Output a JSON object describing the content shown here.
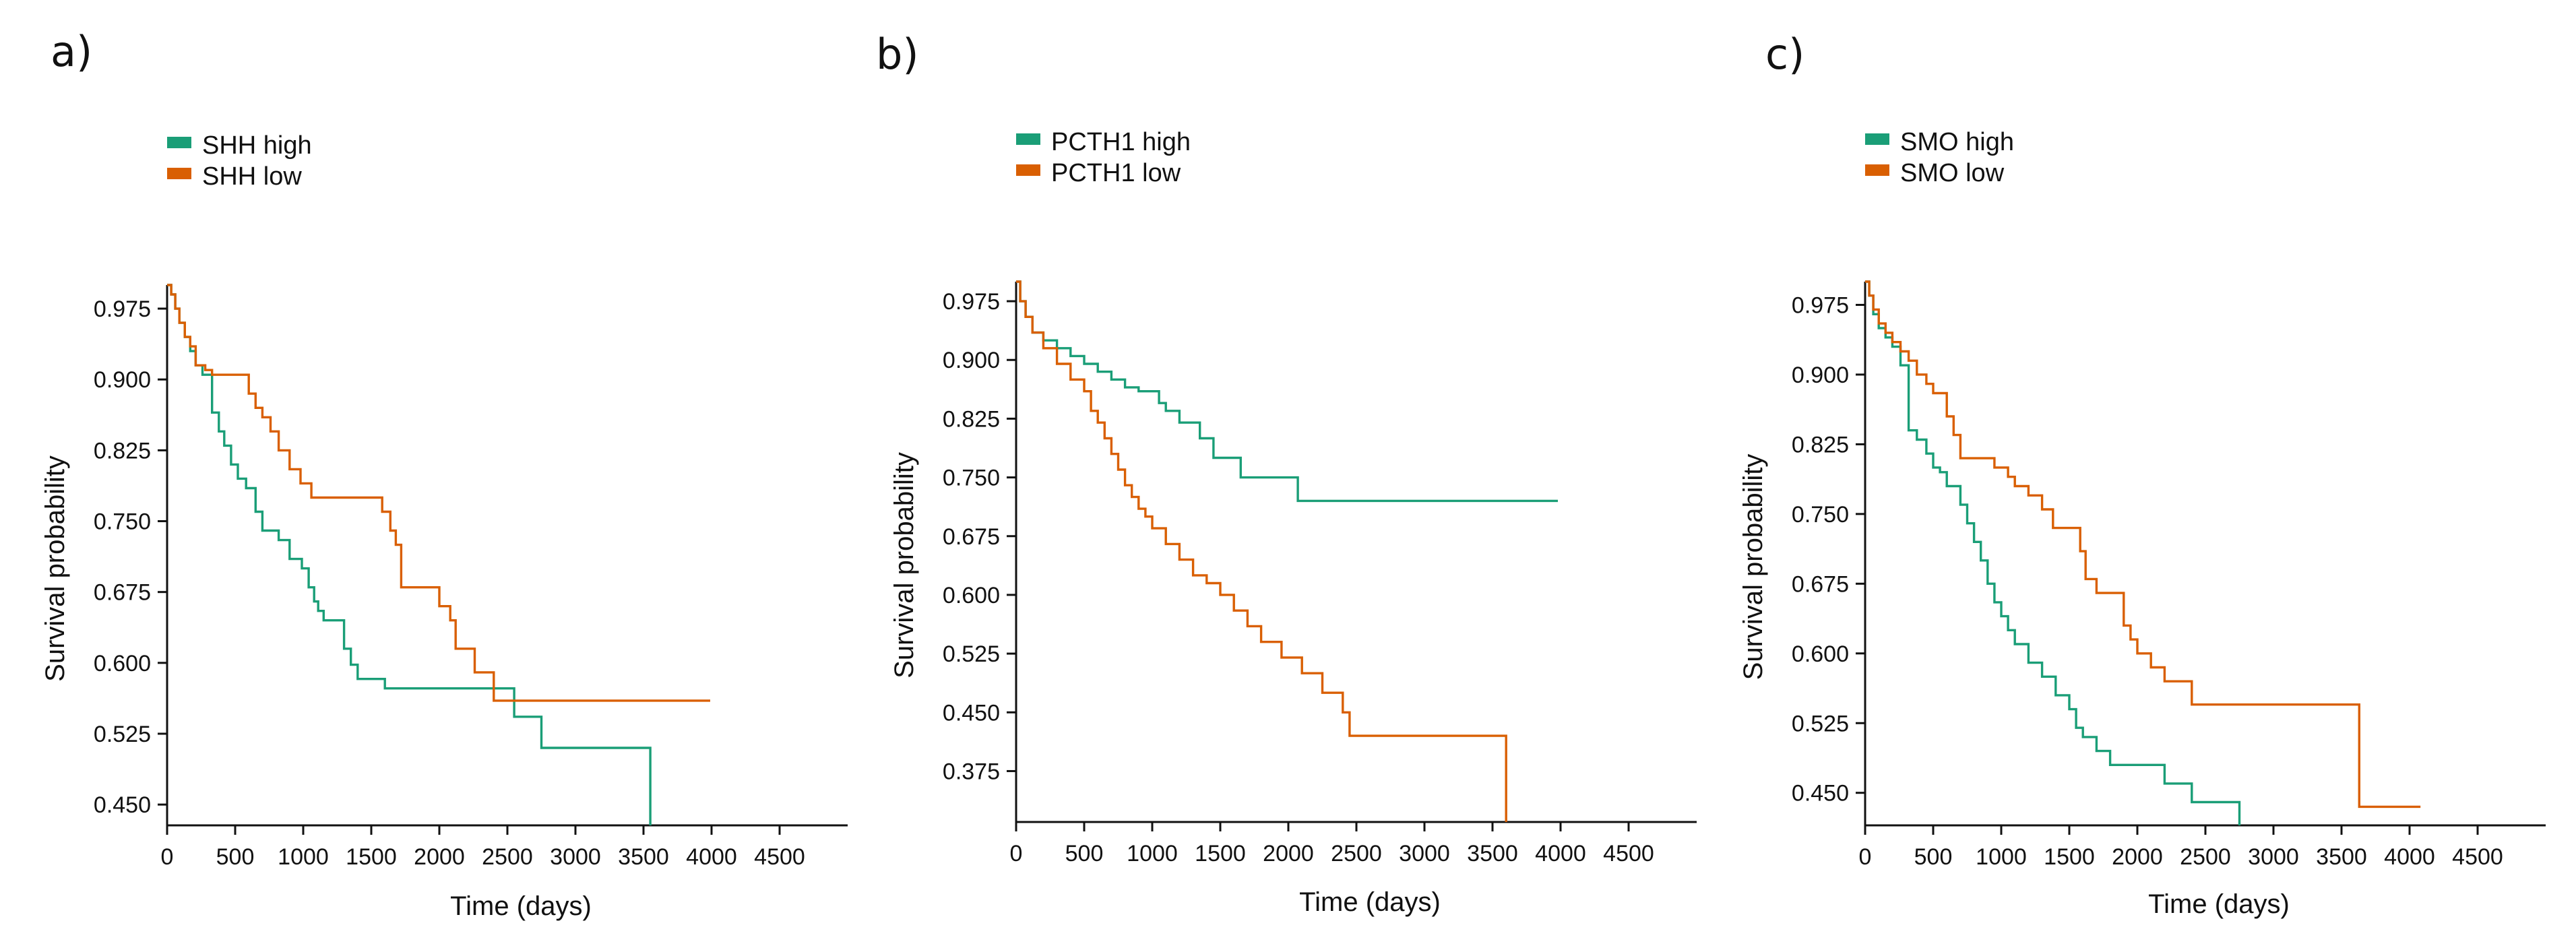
{
  "colors": {
    "high": "#1a9e77",
    "low": "#d95f02"
  },
  "chart_data": [
    {
      "type": "line",
      "panel_label": "a)",
      "title": "",
      "xlabel": "Time (days)",
      "ylabel": "Survival probability",
      "xlim": [
        0,
        5000
      ],
      "ylim": [
        0.428,
        1.0
      ],
      "xticks": [
        0,
        500,
        1000,
        1500,
        2000,
        2500,
        3000,
        3500,
        4000,
        4500
      ],
      "yticks": [
        0.45,
        0.525,
        0.6,
        0.675,
        0.75,
        0.825,
        0.9,
        0.975
      ],
      "xtick_labels": [
        "0",
        "500",
        "1000",
        "1500",
        "2000",
        "2500",
        "3000",
        "3500",
        "4000",
        "4500"
      ],
      "ytick_labels": [
        "0.450",
        "0.525",
        "0.600",
        "0.675",
        "0.750",
        "0.825",
        "0.900",
        "0.975"
      ],
      "legend": [
        {
          "label": "SHH high",
          "key": "high"
        },
        {
          "label": "SHH low",
          "key": "low"
        }
      ],
      "series": [
        {
          "name": "SHH high",
          "key": "high",
          "x": [
            0,
            30,
            60,
            90,
            130,
            170,
            210,
            260,
            330,
            380,
            420,
            470,
            520,
            580,
            650,
            700,
            760,
            820,
            900,
            990,
            1040,
            1080,
            1110,
            1150,
            1200,
            1300,
            1350,
            1400,
            1600,
            2550,
            2750,
            3550,
            3550
          ],
          "y": [
            1.0,
            0.99,
            0.975,
            0.96,
            0.945,
            0.93,
            0.915,
            0.905,
            0.865,
            0.845,
            0.83,
            0.81,
            0.795,
            0.785,
            0.76,
            0.74,
            0.74,
            0.73,
            0.71,
            0.7,
            0.68,
            0.665,
            0.655,
            0.645,
            0.645,
            0.615,
            0.598,
            0.583,
            0.573,
            0.543,
            0.51,
            0.51,
            0.428
          ]
        },
        {
          "name": "SHH low",
          "key": "low",
          "x": [
            0,
            30,
            60,
            90,
            130,
            170,
            210,
            280,
            330,
            600,
            650,
            700,
            760,
            820,
            900,
            980,
            1060,
            1580,
            1640,
            1680,
            1720,
            2000,
            2080,
            2120,
            2260,
            2400,
            3990
          ],
          "y": [
            1.0,
            0.99,
            0.975,
            0.96,
            0.945,
            0.935,
            0.915,
            0.91,
            0.905,
            0.885,
            0.87,
            0.86,
            0.845,
            0.825,
            0.805,
            0.79,
            0.775,
            0.76,
            0.74,
            0.725,
            0.68,
            0.66,
            0.645,
            0.615,
            0.59,
            0.56,
            0.56
          ]
        }
      ]
    },
    {
      "type": "line",
      "panel_label": "b)",
      "title": "",
      "xlabel": "Time (days)",
      "ylabel": "Survival probability",
      "xlim": [
        0,
        5000
      ],
      "ylim": [
        0.31,
        1.0
      ],
      "xticks": [
        0,
        500,
        1000,
        1500,
        2000,
        2500,
        3000,
        3500,
        4000,
        4500
      ],
      "yticks": [
        0.375,
        0.45,
        0.525,
        0.6,
        0.675,
        0.75,
        0.825,
        0.9,
        0.975
      ],
      "xtick_labels": [
        "0",
        "500",
        "1000",
        "1500",
        "2000",
        "2500",
        "3000",
        "3500",
        "4000",
        "4500"
      ],
      "ytick_labels": [
        "0.375",
        "0.450",
        "0.525",
        "0.600",
        "0.675",
        "0.750",
        "0.825",
        "0.900",
        "0.975"
      ],
      "legend": [
        {
          "label": "PCTH1 high",
          "key": "high"
        },
        {
          "label": "PCTH1 low",
          "key": "low"
        }
      ],
      "series": [
        {
          "name": "PCTH1 high",
          "key": "high",
          "x": [
            0,
            30,
            70,
            120,
            200,
            300,
            400,
            500,
            600,
            700,
            800,
            900,
            1050,
            1100,
            1200,
            1350,
            1450,
            1650,
            2070,
            3980
          ],
          "y": [
            1.0,
            0.975,
            0.955,
            0.935,
            0.925,
            0.915,
            0.905,
            0.895,
            0.885,
            0.875,
            0.865,
            0.86,
            0.845,
            0.835,
            0.82,
            0.8,
            0.775,
            0.75,
            0.72,
            0.72
          ]
        },
        {
          "name": "PCTH1 low",
          "key": "low",
          "x": [
            0,
            30,
            70,
            120,
            200,
            300,
            400,
            500,
            550,
            600,
            650,
            700,
            750,
            800,
            850,
            900,
            950,
            1000,
            1100,
            1200,
            1300,
            1400,
            1500,
            1600,
            1700,
            1800,
            1950,
            2100,
            2250,
            2400,
            2450,
            3600,
            3600
          ],
          "y": [
            1.0,
            0.975,
            0.955,
            0.935,
            0.915,
            0.895,
            0.875,
            0.86,
            0.835,
            0.82,
            0.8,
            0.78,
            0.76,
            0.74,
            0.725,
            0.71,
            0.7,
            0.685,
            0.665,
            0.645,
            0.625,
            0.615,
            0.6,
            0.58,
            0.56,
            0.54,
            0.52,
            0.5,
            0.475,
            0.45,
            0.42,
            0.42,
            0.31
          ]
        }
      ]
    },
    {
      "type": "line",
      "panel_label": "c)",
      "title": "",
      "xlabel": "Time (days)",
      "ylabel": "Survival probability",
      "xlim": [
        0,
        5000
      ],
      "ylim": [
        0.415,
        1.0
      ],
      "xticks": [
        0,
        500,
        1000,
        1500,
        2000,
        2500,
        3000,
        3500,
        4000,
        4500
      ],
      "yticks": [
        0.45,
        0.525,
        0.6,
        0.675,
        0.75,
        0.825,
        0.9,
        0.975
      ],
      "xtick_labels": [
        "0",
        "500",
        "1000",
        "1500",
        "2000",
        "2500",
        "3000",
        "3500",
        "4000",
        "4500"
      ],
      "ytick_labels": [
        "0.450",
        "0.525",
        "0.600",
        "0.675",
        "0.750",
        "0.825",
        "0.900",
        "0.975"
      ],
      "legend": [
        {
          "label": "SMO high",
          "key": "high"
        },
        {
          "label": "SMO low",
          "key": "low"
        }
      ],
      "series": [
        {
          "name": "SMO high",
          "key": "high",
          "x": [
            0,
            30,
            60,
            100,
            150,
            200,
            260,
            320,
            380,
            450,
            500,
            550,
            600,
            700,
            750,
            800,
            850,
            900,
            950,
            1000,
            1050,
            1100,
            1200,
            1300,
            1400,
            1500,
            1550,
            1600,
            1700,
            1800,
            1900,
            2200,
            2400,
            2750,
            2750
          ],
          "y": [
            1.0,
            0.985,
            0.965,
            0.95,
            0.94,
            0.93,
            0.91,
            0.84,
            0.83,
            0.815,
            0.8,
            0.795,
            0.78,
            0.76,
            0.74,
            0.72,
            0.7,
            0.675,
            0.655,
            0.64,
            0.625,
            0.61,
            0.59,
            0.575,
            0.555,
            0.54,
            0.52,
            0.51,
            0.495,
            0.48,
            0.48,
            0.46,
            0.44,
            0.44,
            0.415
          ]
        },
        {
          "name": "SMO low",
          "key": "low",
          "x": [
            0,
            30,
            60,
            100,
            150,
            200,
            260,
            320,
            380,
            450,
            500,
            600,
            650,
            700,
            800,
            950,
            1050,
            1100,
            1200,
            1300,
            1380,
            1580,
            1620,
            1700,
            1900,
            1950,
            2000,
            2100,
            2200,
            2400,
            3600,
            3630,
            4080
          ],
          "y": [
            1.0,
            0.985,
            0.97,
            0.955,
            0.945,
            0.935,
            0.925,
            0.915,
            0.9,
            0.89,
            0.88,
            0.855,
            0.835,
            0.81,
            0.81,
            0.8,
            0.79,
            0.78,
            0.77,
            0.755,
            0.735,
            0.71,
            0.68,
            0.665,
            0.63,
            0.615,
            0.6,
            0.585,
            0.57,
            0.545,
            0.545,
            0.435,
            0.435
          ]
        }
      ]
    }
  ]
}
